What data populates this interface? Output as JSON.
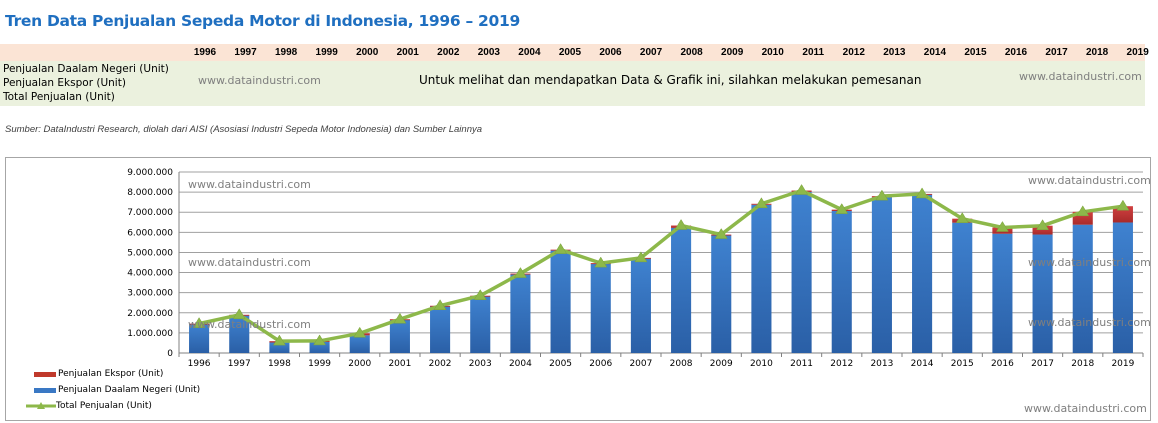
{
  "page": {
    "title": "Tren Data Penjualan Sepeda Motor di Indonesia, 1996 – 2019",
    "source": "Sumber: DataIndustri Research, diolah dari AISI (Asosiasi Industri Sepeda Motor Indonesia) dan Sumber Lainnya"
  },
  "table": {
    "years": [
      "1996",
      "1997",
      "1998",
      "1999",
      "2000",
      "2001",
      "2002",
      "2003",
      "2004",
      "2005",
      "2006",
      "2007",
      "2008",
      "2009",
      "2010",
      "2011",
      "2012",
      "2013",
      "2014",
      "2015",
      "2016",
      "2017",
      "2018",
      "2019"
    ],
    "rows": [
      "Penjualan Daalam Negeri (Unit)",
      "Penjualan Ekspor (Unit)",
      "Total Penjualan (Unit)"
    ],
    "watermark_left": "www.dataindustri.com",
    "watermark_right": "www.dataindustri.com",
    "message": "Untuk melihat dan mendapatkan Data & Grafik ini, silahkan melakukan pemesanan"
  },
  "watermarks": {
    "top_left": "www.dataindustri.com",
    "top_right": "www.dataindustri.com",
    "mid_left": "www.dataindustri.com",
    "mid_right": "www.dataindustri.com",
    "low_left": "www.dataindustri.com",
    "low_right": "www.dataindustri.com",
    "bottom_right": "www.dataindustri.com"
  },
  "colors": {
    "title": "#1f6fc0",
    "domestic": "#3a78c4",
    "export": "#c0392b",
    "total": "#8db84a"
  },
  "chart_data": {
    "type": "bar",
    "stacked": true,
    "title": "",
    "xlabel": "",
    "ylabel": "",
    "categories": [
      "1996",
      "1997",
      "1998",
      "1999",
      "2000",
      "2001",
      "2002",
      "2003",
      "2004",
      "2005",
      "2006",
      "2007",
      "2008",
      "2009",
      "2010",
      "2011",
      "2012",
      "2013",
      "2014",
      "2015",
      "2016",
      "2017",
      "2018",
      "2019"
    ],
    "ylim": [
      0,
      9000000
    ],
    "yticks": [
      0,
      1000000,
      2000000,
      3000000,
      4000000,
      5000000,
      6000000,
      7000000,
      8000000,
      9000000
    ],
    "ytick_labels": [
      "0",
      "1.000.000",
      "2.000.000",
      "3.000.000",
      "4.000.000",
      "5.000.000",
      "6.000.000",
      "7.000.000",
      "8.000.000",
      "9.000.000"
    ],
    "grid": true,
    "legend_position": "bottom-left",
    "series": [
      {
        "name": "Penjualan Ekspor (Unit)",
        "kind": "bar",
        "values": [
          30000,
          40000,
          70000,
          30000,
          100000,
          30000,
          30000,
          40000,
          50000,
          50000,
          40000,
          40000,
          120000,
          40000,
          50000,
          70000,
          70000,
          60000,
          40000,
          200000,
          310000,
          440000,
          640000,
          810000
        ]
      },
      {
        "name": "Penjualan Daalam Negeri (Unit)",
        "kind": "bar",
        "values": [
          1430000,
          1860000,
          520000,
          570000,
          880000,
          1650000,
          2320000,
          2810000,
          3900000,
          5090000,
          4430000,
          4690000,
          6220000,
          5850000,
          7370000,
          8010000,
          7060000,
          7740000,
          7870000,
          6480000,
          5930000,
          5890000,
          6380000,
          6490000
        ]
      },
      {
        "name": "Total Penjualan (Unit)",
        "kind": "line",
        "values": [
          1460000,
          1900000,
          590000,
          600000,
          980000,
          1680000,
          2350000,
          2850000,
          3950000,
          5140000,
          4470000,
          4730000,
          6340000,
          5890000,
          7420000,
          8080000,
          7130000,
          7800000,
          7910000,
          6680000,
          6240000,
          6330000,
          7020000,
          7300000
        ]
      }
    ]
  }
}
